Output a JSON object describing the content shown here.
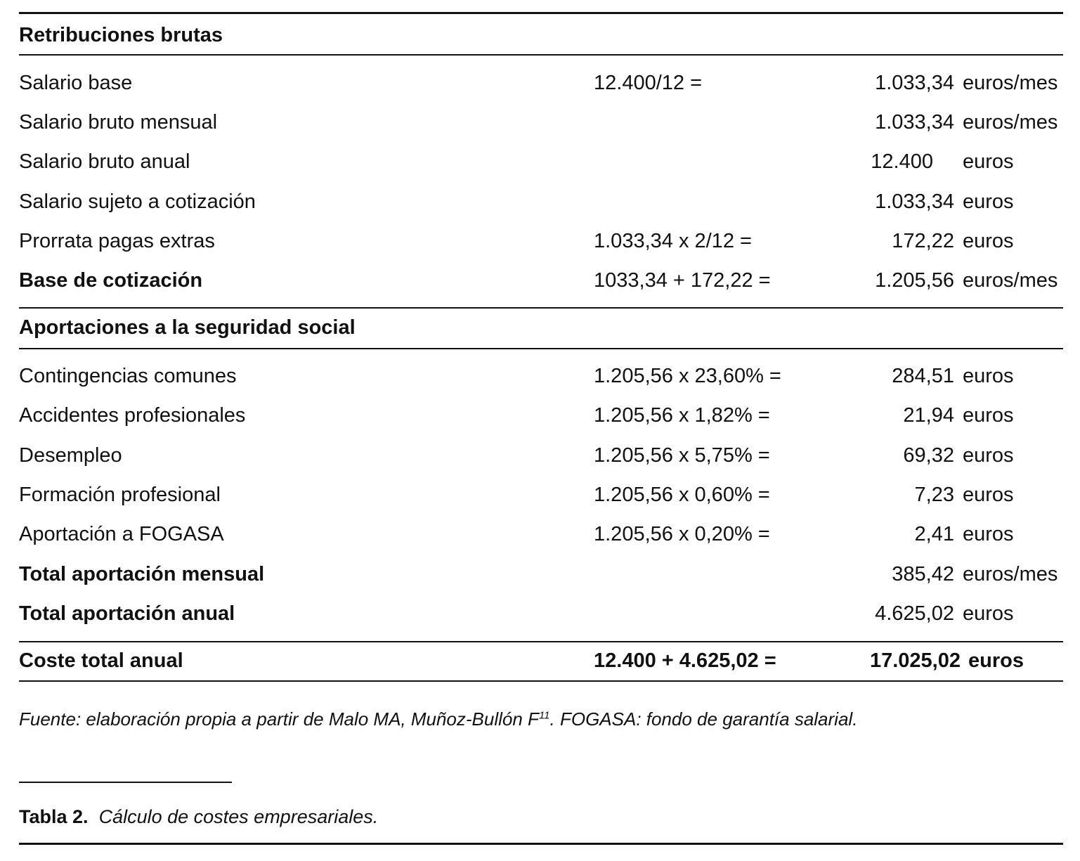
{
  "sections": [
    {
      "header": "Retribuciones brutas",
      "rows": [
        {
          "label": "Salario base",
          "formula": "12.400/12 =",
          "amount": "1.033,34",
          "unit": "euros/mes"
        },
        {
          "label": "Salario bruto mensual",
          "amount": "1.033,34",
          "unit": "euros/mes"
        },
        {
          "label": "Salario bruto anual",
          "amount": "12.400",
          "unit": "euros"
        },
        {
          "label": "Salario sujeto a cotización",
          "amount": "1.033,34",
          "unit": "euros"
        },
        {
          "label": "Prorrata pagas extras",
          "formula": "1.033,34 x 2/12 =",
          "amount": "172,22",
          "unit": "euros"
        },
        {
          "label": "Base de cotización",
          "formula": "1033,34 + 172,22 =",
          "amount": "1.205,56",
          "unit": "euros/mes"
        }
      ]
    },
    {
      "header": "Aportaciones a la seguridad social",
      "rows": [
        {
          "label": "Contingencias comunes",
          "formula": "1.205,56 x 23,60% =",
          "amount": "284,51",
          "unit": "euros"
        },
        {
          "label": "Accidentes profesionales",
          "formula": "1.205,56 x 1,82% =",
          "amount": "21,94",
          "unit": "euros"
        },
        {
          "label": "Desempleo",
          "formula": "1.205,56 x 5,75% =",
          "amount": "69,32",
          "unit": "euros"
        },
        {
          "label": "Formación profesional",
          "formula": "1.205,56 x 0,60% =",
          "amount": "7,23",
          "unit": "euros"
        },
        {
          "label": "Aportación a FOGASA",
          "formula": "1.205,56 x 0,20% =",
          "amount": "2,41",
          "unit": "euros"
        },
        {
          "label": "Total aportación mensual",
          "amount": "385,42",
          "unit": "euros/mes"
        },
        {
          "label": "Total aportación anual",
          "amount": "4.625,02",
          "unit": "euros"
        }
      ]
    }
  ],
  "total": {
    "label": "Coste total anual",
    "formula": "12.400 + 4.625,02 =",
    "amount": "17.025,02",
    "unit": "euros"
  },
  "footnote": {
    "text": "Fuente: elaboración propia a partir de Malo MA, Muñoz-Bullón F",
    "superscript": "11",
    "text_end": ". FOGASA: fondo de garantía salarial."
  },
  "caption": {
    "number": "Tabla 2.",
    "title": "Cálculo de costes empresariales."
  }
}
